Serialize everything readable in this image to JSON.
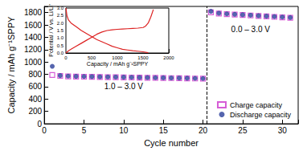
{
  "chart_data": [
    {
      "type": "scatter",
      "x_label": "Cycle number",
      "y_label": "Capacity / mAh g⁻¹SPPY",
      "xlim": [
        0,
        32
      ],
      "xticks": [
        0,
        5,
        10,
        15,
        20,
        25,
        30
      ],
      "ylim": [
        0,
        1900
      ],
      "yticks": [
        0,
        200,
        400,
        600,
        800,
        1000,
        1200,
        1400,
        1600,
        1800
      ],
      "grid": false,
      "legend": "bottom-right",
      "x": [
        1,
        2,
        3,
        4,
        5,
        6,
        7,
        8,
        9,
        10,
        11,
        12,
        13,
        14,
        15,
        16,
        17,
        18,
        19,
        20,
        21,
        22,
        23,
        24,
        25,
        26,
        27,
        28,
        29,
        30,
        31
      ],
      "series": [
        {
          "name": "Charge capacity",
          "color": "#cc33cc",
          "marker": "open_square",
          "values": [
            790,
            775,
            768,
            765,
            762,
            760,
            757,
            755,
            753,
            751,
            749,
            747,
            745,
            743,
            741,
            739,
            737,
            735,
            733,
            730,
            1805,
            1785,
            1776,
            1768,
            1761,
            1754,
            1746,
            1738,
            1731,
            1724,
            1716
          ]
        },
        {
          "name": "Discharge capacity",
          "color": "#2a3f9a",
          "marker": "circle",
          "values": [
            930,
            780,
            772,
            768,
            765,
            763,
            760,
            758,
            756,
            754,
            752,
            750,
            748,
            746,
            744,
            742,
            740,
            738,
            736,
            733,
            1820,
            1790,
            1780,
            1772,
            1765,
            1758,
            1750,
            1742,
            1735,
            1728,
            1720
          ]
        }
      ],
      "divider_x": 20.5,
      "annotations": [
        {
          "text": "1.0 – 3.0 V",
          "x": 10,
          "y": 600
        },
        {
          "text": "0.0 – 3.0 V",
          "x": 26,
          "y": 1530
        }
      ]
    },
    {
      "type": "line",
      "x_label": "Capacity / mAh g⁻¹SPPY",
      "y_label": "Potential / V vs. Li/Li⁺",
      "xlim": [
        0,
        2000
      ],
      "xticks": [
        0,
        500,
        1000,
        1500,
        2000
      ],
      "ylim": [
        0,
        3
      ],
      "yticks": [
        {
          "value": 0,
          "label": "0.0"
        },
        0.5,
        {
          "value": 1,
          "label": "1.0"
        },
        1.5,
        {
          "value": 2,
          "label": "2.0"
        },
        2.5,
        {
          "value": 3,
          "label": "3.0"
        }
      ],
      "grid": false,
      "series": [
        {
          "color": "#dd2222",
          "line_style": "solid",
          "x": [
            0,
            20,
            50,
            100,
            200,
            300,
            400,
            500,
            600,
            700,
            800,
            900,
            1000,
            1100,
            1200,
            1300,
            1400,
            1500,
            1600
          ],
          "values": [
            3.0,
            2.5,
            2.2,
            2.0,
            1.75,
            1.5,
            1.3,
            1.1,
            0.9,
            0.75,
            0.6,
            0.45,
            0.35,
            0.25,
            0.2,
            0.15,
            0.12,
            0.08,
            0.02
          ]
        },
        {
          "color": "#dd2222",
          "line_style": "solid",
          "x": [
            0,
            50,
            100,
            200,
            300,
            400,
            500,
            600,
            700,
            800,
            900,
            1000,
            1100,
            1200,
            1300,
            1400,
            1500,
            1550,
            1600,
            1650,
            1700
          ],
          "values": [
            0.0,
            0.15,
            0.25,
            0.45,
            0.65,
            0.85,
            1.05,
            1.25,
            1.4,
            1.5,
            1.55,
            1.58,
            1.6,
            1.62,
            1.64,
            1.66,
            1.7,
            1.8,
            2.0,
            2.4,
            2.9
          ]
        }
      ]
    }
  ]
}
